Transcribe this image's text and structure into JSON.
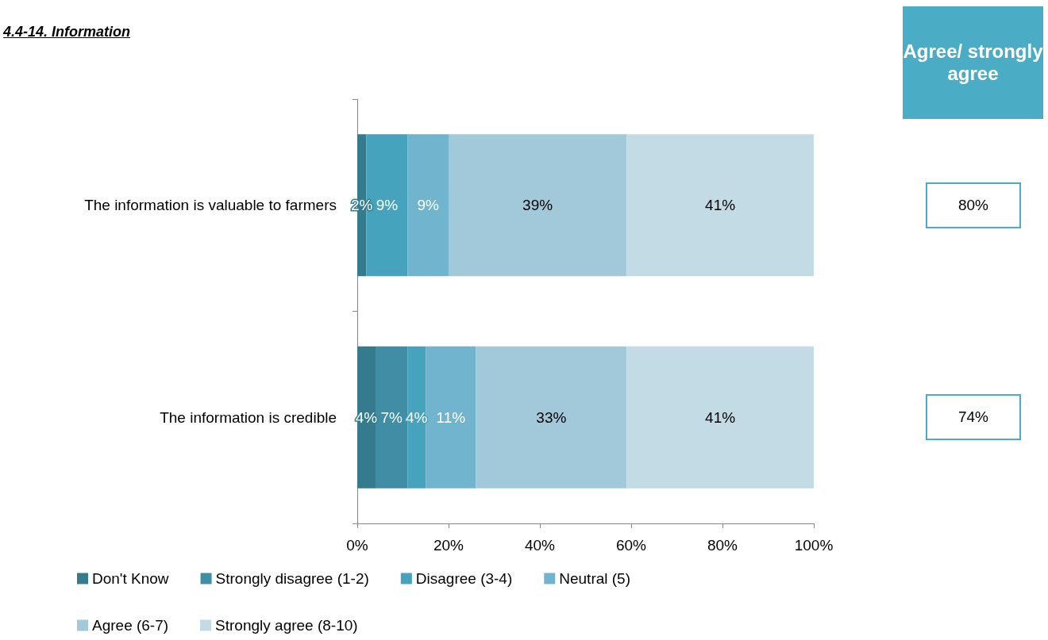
{
  "chart_data": {
    "type": "bar",
    "orientation": "horizontal",
    "stacked": true,
    "title": "4.4-14. Information",
    "categories": [
      "The information is valuable to farmers",
      "The information is credible"
    ],
    "series": [
      {
        "name": "Don't Know",
        "color": "#347b8d",
        "values": [
          2,
          4
        ],
        "value_labels": [
          "2%",
          "4%"
        ]
      },
      {
        "name": "Strongly disagree (1-2)",
        "color": "#3f8ea6",
        "values": [
          0,
          7
        ],
        "value_labels": [
          null,
          "7%"
        ]
      },
      {
        "name": "Disagree (3-4)",
        "color": "#46a3be",
        "values": [
          9,
          4
        ],
        "value_labels": [
          "9%",
          "4%"
        ]
      },
      {
        "name": "Neutral (5)",
        "color": "#70b5cd",
        "values": [
          9,
          11
        ],
        "value_labels": [
          "9%",
          "11%"
        ]
      },
      {
        "name": "Agree (6-7)",
        "color": "#a2c9da",
        "values": [
          39,
          33
        ],
        "value_labels": [
          "39%",
          "33%"
        ]
      },
      {
        "name": "Strongly agree (8-10)",
        "color": "#c3dbe4",
        "values": [
          41,
          41
        ],
        "value_labels": [
          "41%",
          "41%"
        ]
      }
    ],
    "xlim": [
      0,
      100
    ],
    "xticks": [
      {
        "value": 0,
        "label": "0%"
      },
      {
        "value": 20,
        "label": "20%"
      },
      {
        "value": 40,
        "label": "40%"
      },
      {
        "value": 60,
        "label": "60%"
      },
      {
        "value": 80,
        "label": "80%"
      },
      {
        "value": 100,
        "label": "100%"
      }
    ],
    "grid": false,
    "legend": "bottom",
    "annotations": [
      "Agree/ strongly agree",
      "80%",
      "74%"
    ]
  }
}
